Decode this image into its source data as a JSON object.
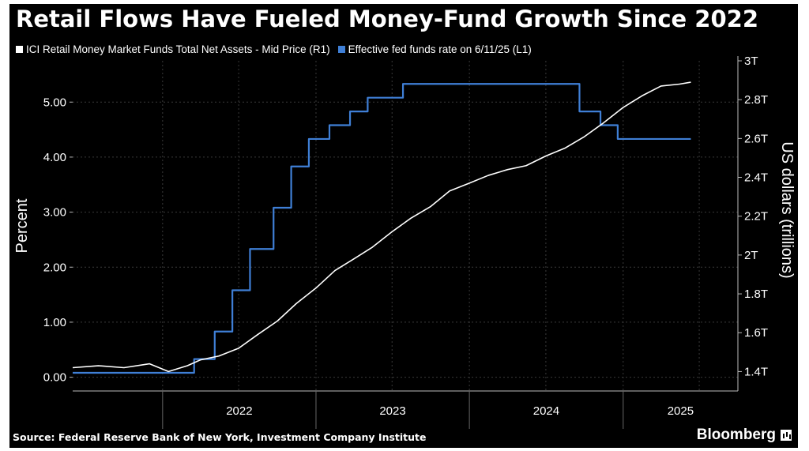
{
  "title": "Retail Flows Have Fueled Money-Fund Growth Since 2022",
  "legend": [
    {
      "label": "ICI Retail Money Market Funds Total Net Assets - Mid Price (R1)",
      "color": "#ffffff"
    },
    {
      "label": "Effective fed funds rate  on 6/11/25 (L1)",
      "color": "#3f7fd6"
    }
  ],
  "source": "Source: Federal Reserve Bank of New York, Investment Company Institute",
  "brand": "Bloomberg",
  "chart_data": {
    "type": "line",
    "title": "Retail Flows Have Fueled Money-Fund Growth Since 2022",
    "x_axis": {
      "type": "date",
      "range": [
        "2021-06-01",
        "2025-10-01"
      ],
      "tick_labels": [
        "2022",
        "2023",
        "2024",
        "2025"
      ]
    },
    "y_left": {
      "label": "Percent",
      "range": [
        -0.25,
        5.75
      ],
      "ticks": [
        "0.00",
        "1.00",
        "2.00",
        "3.00",
        "4.00",
        "5.00"
      ]
    },
    "y_right": {
      "label": "US dollars (trillions)",
      "range": [
        1.3,
        3.0
      ],
      "ticks": [
        "1.4T",
        "1.6T",
        "1.8T",
        "2T",
        "2.2T",
        "2.4T",
        "2.6T",
        "2.8T",
        "3T"
      ]
    },
    "grid": true,
    "series": [
      {
        "name": "Effective fed funds rate  on 6/11/25 (L1)",
        "axis": "left",
        "color": "#3f7fd6",
        "shape": "step",
        "x": [
          "2021-06-01",
          "2022-03-17",
          "2022-05-05",
          "2022-06-16",
          "2022-07-28",
          "2022-09-22",
          "2022-11-03",
          "2022-12-15",
          "2023-02-02",
          "2023-03-23",
          "2023-05-04",
          "2023-07-27",
          "2024-09-19",
          "2024-11-08",
          "2024-12-19",
          "2025-06-11"
        ],
        "y": [
          0.08,
          0.33,
          0.83,
          1.58,
          2.33,
          3.08,
          3.83,
          4.33,
          4.58,
          4.83,
          5.08,
          5.33,
          4.83,
          4.58,
          4.33,
          4.33
        ]
      },
      {
        "name": "ICI Retail Money Market Funds Total Net Assets - Mid Price (R1)",
        "axis": "right",
        "color": "#ffffff",
        "shape": "line",
        "x": [
          "2021-06-01",
          "2021-08-01",
          "2021-10-01",
          "2021-12-01",
          "2022-01-15",
          "2022-03-01",
          "2022-04-01",
          "2022-05-15",
          "2022-07-01",
          "2022-08-15",
          "2022-10-01",
          "2022-11-15",
          "2023-01-01",
          "2023-02-15",
          "2023-04-01",
          "2023-05-15",
          "2023-07-01",
          "2023-08-15",
          "2023-10-01",
          "2023-11-15",
          "2024-01-01",
          "2024-02-15",
          "2024-04-01",
          "2024-05-15",
          "2024-07-01",
          "2024-08-15",
          "2024-10-01",
          "2024-11-15",
          "2025-01-01",
          "2025-02-15",
          "2025-04-01",
          "2025-05-15",
          "2025-06-11"
        ],
        "y": [
          1.42,
          1.43,
          1.42,
          1.44,
          1.4,
          1.43,
          1.46,
          1.48,
          1.52,
          1.59,
          1.66,
          1.75,
          1.83,
          1.92,
          1.98,
          2.04,
          2.12,
          2.19,
          2.25,
          2.33,
          2.37,
          2.41,
          2.44,
          2.46,
          2.51,
          2.55,
          2.61,
          2.68,
          2.76,
          2.82,
          2.87,
          2.88,
          2.89
        ]
      }
    ]
  }
}
